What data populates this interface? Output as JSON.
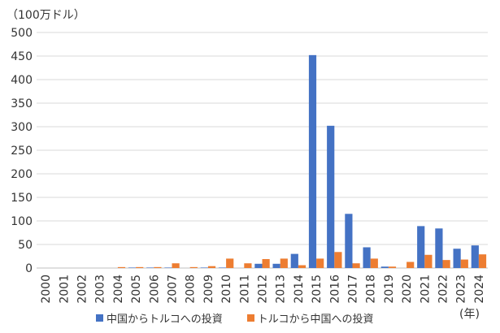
{
  "unit_label": "（100万ドル）",
  "year_label": "(年)",
  "colors": {
    "series1": "#4472C4",
    "series2": "#ED7D31",
    "grid": "#d9d9d9",
    "axis": "#bfbfbf",
    "text": "#333333"
  },
  "chart_data": {
    "type": "bar",
    "categories": [
      "2000",
      "2001",
      "2002",
      "2003",
      "2004",
      "2005",
      "2006",
      "2007",
      "2008",
      "2009",
      "2010",
      "2011",
      "2012",
      "2013",
      "2014",
      "2015",
      "2016",
      "2017",
      "2018",
      "2019",
      "2020",
      "2021",
      "2022",
      "2023",
      "2024"
    ],
    "series": [
      {
        "name": "中国からトルコへの投資",
        "values": [
          0,
          0,
          0,
          0,
          0,
          1,
          1,
          1,
          0,
          1,
          1,
          0,
          9,
          9,
          30,
          452,
          302,
          115,
          44,
          3,
          0,
          89,
          84,
          41,
          48
        ]
      },
      {
        "name": "トルコから中国への投資",
        "values": [
          0,
          0,
          0,
          0,
          2,
          2,
          2,
          10,
          2,
          4,
          20,
          10,
          19,
          20,
          6,
          20,
          34,
          10,
          20,
          3,
          13,
          28,
          17,
          18,
          29
        ]
      }
    ],
    "ylim": [
      0,
      500
    ],
    "yticks": [
      0,
      50,
      100,
      150,
      200,
      250,
      300,
      350,
      400,
      450,
      500
    ],
    "grid": true,
    "legend_position": "bottom"
  }
}
